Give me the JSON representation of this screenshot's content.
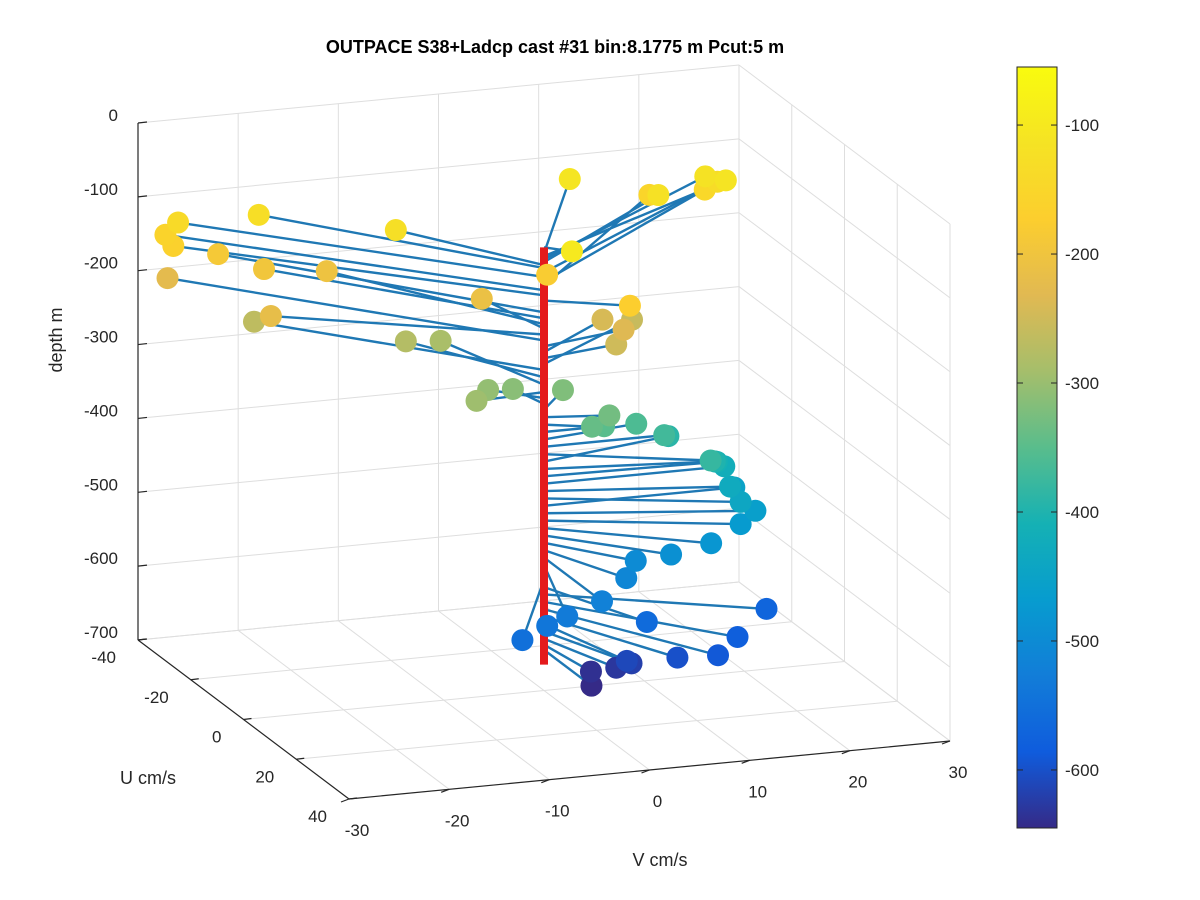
{
  "chart_data": {
    "type": "scatter",
    "title": "OUTPACE S38+Ladcp cast #31 bin:8.1775 m  Pcut:5 m",
    "axes": {
      "x": {
        "label": "V cm/s",
        "ticks": [
          "-30",
          "-20",
          "-10",
          "0",
          "10",
          "20",
          "30"
        ],
        "range": [
          -30,
          30
        ]
      },
      "y": {
        "label": "U cm/s",
        "ticks": [
          "-40",
          "-20",
          "0",
          "20",
          "40"
        ],
        "range": [
          -40,
          40
        ]
      },
      "z": {
        "label": "depth m",
        "ticks": [
          "0",
          "-100",
          "-200",
          "-300",
          "-400",
          "-500",
          "-600",
          "-700"
        ],
        "range": [
          -700,
          0
        ]
      }
    },
    "grid": true,
    "reference_line": {
      "name": "",
      "color": "#e41a1c",
      "depth_range": [
        -100,
        -665
      ]
    },
    "colorbar": {
      "ticks": [
        "-100",
        "-200",
        "-300",
        "-400",
        "-500",
        "-600"
      ],
      "range": [
        -645,
        -55
      ],
      "colormap": "parula"
    },
    "series": [
      {
        "marker": "filled circle",
        "stem_color": "#1f78b4",
        "points": [
          {
            "depth": -100,
            "u": 3,
            "v": 2
          },
          {
            "depth": -108,
            "u": -32,
            "v": 11
          },
          {
            "depth": -112,
            "u": -26,
            "v": 25
          },
          {
            "depth": -116,
            "u": -30,
            "v": 24
          },
          {
            "depth": -120,
            "u": -25,
            "v": 18
          },
          {
            "depth": -124,
            "u": -22,
            "v": -9
          },
          {
            "depth": -128,
            "u": -36,
            "v": -19
          },
          {
            "depth": -134,
            "u": -33,
            "v": 26
          },
          {
            "depth": -140,
            "u": -40,
            "v": -26
          },
          {
            "depth": -146,
            "u": -34,
            "v": 25
          },
          {
            "depth": -152,
            "u": -36,
            "v": 20
          },
          {
            "depth": -158,
            "u": -41,
            "v": -27
          },
          {
            "depth": -165,
            "u": -38,
            "v": -27
          },
          {
            "depth": -172,
            "u": 6,
            "v": 7
          },
          {
            "depth": -180,
            "u": -14,
            "v": 4
          },
          {
            "depth": -188,
            "u": -40,
            "v": -22
          },
          {
            "depth": -196,
            "u": -34,
            "v": -19
          },
          {
            "depth": -204,
            "u": -33,
            "v": -13
          },
          {
            "depth": -210,
            "u": -16,
            "v": -2
          },
          {
            "depth": -218,
            "u": -20,
            "v": -22
          },
          {
            "depth": -226,
            "u": -44,
            "v": -26
          },
          {
            "depth": -234,
            "u": -4,
            "v": 9
          },
          {
            "depth": -242,
            "u": -12,
            "v": 9
          },
          {
            "depth": -250,
            "u": -3,
            "v": 8
          },
          {
            "depth": -258,
            "u": -16,
            "v": 13
          },
          {
            "depth": -266,
            "u": -34,
            "v": -20
          },
          {
            "depth": -276,
            "u": -22,
            "v": -8
          },
          {
            "depth": -286,
            "u": -24,
            "v": -4
          },
          {
            "depth": -296,
            "u": 1,
            "v": -7
          },
          {
            "depth": -304,
            "u": -6,
            "v": -4
          },
          {
            "depth": -312,
            "u": -8,
            "v": -1
          },
          {
            "depth": -320,
            "u": -8,
            "v": 4
          },
          {
            "depth": -330,
            "u": 2,
            "v": 6
          },
          {
            "depth": -340,
            "u": 3,
            "v": 4
          },
          {
            "depth": -350,
            "u": 0,
            "v": 6
          },
          {
            "depth": -360,
            "u": -3,
            "v": 10
          },
          {
            "depth": -370,
            "u": 0,
            "v": 12
          },
          {
            "depth": -380,
            "u": 10,
            "v": 14
          },
          {
            "depth": -390,
            "u": -6,
            "v": 14
          },
          {
            "depth": -400,
            "u": 4,
            "v": 16
          },
          {
            "depth": -410,
            "u": 1,
            "v": 17
          },
          {
            "depth": -420,
            "u": 0,
            "v": 18
          },
          {
            "depth": -430,
            "u": 6,
            "v": 17
          },
          {
            "depth": -440,
            "u": 10,
            "v": 17
          },
          {
            "depth": -450,
            "u": 0,
            "v": 19
          },
          {
            "depth": -460,
            "u": 8,
            "v": 19
          },
          {
            "depth": -470,
            "u": 10,
            "v": 17
          },
          {
            "depth": -480,
            "u": 14,
            "v": 13
          },
          {
            "depth": -490,
            "u": 14,
            "v": 9
          },
          {
            "depth": -500,
            "u": 12,
            "v": 6
          },
          {
            "depth": -510,
            "u": 16,
            "v": 4
          },
          {
            "depth": -520,
            "u": 22,
            "v": 0
          },
          {
            "depth": -530,
            "u": 24,
            "v": -4
          },
          {
            "depth": -540,
            "u": 24,
            "v": -6
          },
          {
            "depth": -550,
            "u": 26,
            "v": -9
          },
          {
            "depth": -560,
            "u": 20,
            "v": 5
          },
          {
            "depth": -570,
            "u": 16,
            "v": 18
          },
          {
            "depth": -580,
            "u": 24,
            "v": 13
          },
          {
            "depth": -590,
            "u": 28,
            "v": 10
          },
          {
            "depth": -600,
            "u": 24,
            "v": 7
          },
          {
            "depth": -610,
            "u": 20,
            "v": 3
          },
          {
            "depth": -620,
            "u": 18,
            "v": 4
          },
          {
            "depth": -630,
            "u": 16,
            "v": 3
          },
          {
            "depth": -638,
            "u": 14,
            "v": 1
          },
          {
            "depth": -645,
            "u": 18,
            "v": 0
          }
        ]
      }
    ]
  }
}
